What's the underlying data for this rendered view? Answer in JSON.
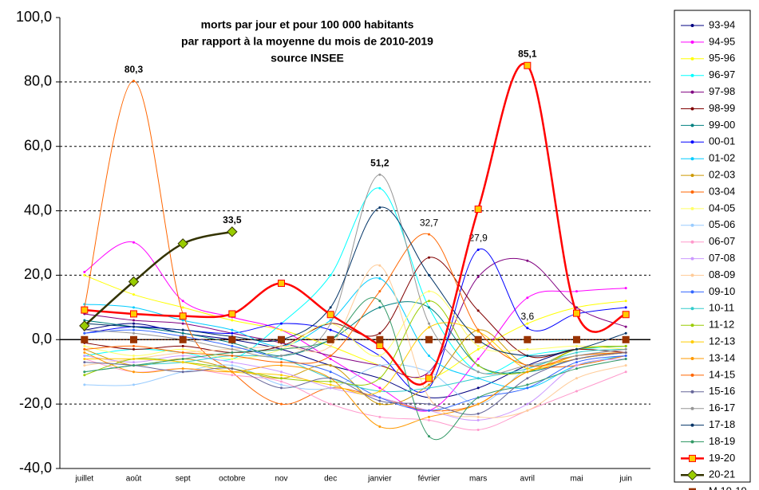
{
  "chart_data": {
    "type": "line",
    "title": [
      "morts par jour et pour 100 000 habitants",
      "par rapport à la moyenne du mois de 2010-2019",
      "source INSEE"
    ],
    "categories": [
      "juillet",
      "août",
      "sept",
      "octobre",
      "nov",
      "dec",
      "janvier",
      "février",
      "mars",
      "avril",
      "mai",
      "juin"
    ],
    "ylim": [
      -40,
      100
    ],
    "yticks": [
      {
        "value": -40,
        "label": "-40,0"
      },
      {
        "value": -20,
        "label": "-20,0"
      },
      {
        "value": 0,
        "label": "0,0"
      },
      {
        "value": 20,
        "label": "20,0"
      },
      {
        "value": 40,
        "label": "40,0"
      },
      {
        "value": 60,
        "label": "60,0"
      },
      {
        "value": 80,
        "label": "80,0"
      },
      {
        "value": 100,
        "label": "100,0"
      }
    ],
    "grid": true,
    "legend": "right",
    "series": [
      {
        "name": "93-94",
        "color": "#000080",
        "values": [
          3,
          5,
          2,
          0,
          -3,
          -8,
          -12,
          -18,
          -15,
          -8,
          -3,
          -2
        ]
      },
      {
        "name": "94-95",
        "color": "#ff00ff",
        "values": [
          21,
          30.2,
          12,
          7,
          3,
          -6,
          -15,
          -22,
          -6,
          13,
          15,
          16
        ]
      },
      {
        "name": "95-96",
        "color": "#ffff00",
        "values": [
          20,
          14,
          10,
          6,
          3,
          -2,
          -8,
          -12,
          -3,
          5,
          10,
          12
        ]
      },
      {
        "name": "96-97",
        "color": "#00ffff",
        "values": [
          -5,
          -3,
          -4,
          -6,
          5,
          20,
          47,
          10,
          -10,
          -5,
          -3,
          -2
        ]
      },
      {
        "name": "97-98",
        "color": "#800080",
        "values": [
          8,
          6,
          5,
          2,
          -1,
          -5,
          -8,
          -10,
          19.5,
          24.5,
          10,
          4
        ]
      },
      {
        "name": "98-99",
        "color": "#800000",
        "values": [
          -1,
          -3,
          -2,
          -4,
          -2,
          5,
          2,
          25.5,
          9,
          -5,
          -3,
          -4
        ]
      },
      {
        "name": "99-00",
        "color": "#008080",
        "values": [
          6,
          4,
          2,
          -1,
          -5,
          0,
          10,
          10,
          -8,
          -10,
          -6,
          -4
        ]
      },
      {
        "name": "00-01",
        "color": "#0000ff",
        "values": [
          2,
          4,
          3,
          2,
          5,
          3,
          -5,
          -15,
          27.9,
          3.6,
          8,
          10
        ],
        "value_labels": [
          null,
          null,
          null,
          null,
          null,
          null,
          null,
          null,
          "27,9",
          "3,6",
          null,
          null
        ]
      },
      {
        "name": "01-02",
        "color": "#00ccff",
        "values": [
          11,
          10,
          6,
          3,
          -2,
          6,
          19,
          -5,
          -12,
          -15,
          -8,
          -5
        ]
      },
      {
        "name": "02-03",
        "color": "#cc9900",
        "values": [
          -3,
          -8,
          -6,
          -9,
          -12,
          -8,
          -20,
          -14,
          3,
          -8,
          -3,
          -2
        ]
      },
      {
        "name": "03-04",
        "color": "#ff6600",
        "values": [
          10,
          80.3,
          8,
          -10,
          -20,
          -15,
          -18,
          -22,
          -20,
          -10,
          -8,
          -5
        ],
        "value_labels": [
          null,
          "80,3",
          null,
          null,
          null,
          null,
          null,
          null,
          null,
          null,
          null,
          null
        ]
      },
      {
        "name": "04-05",
        "color": "#ffff66",
        "values": [
          -2,
          -5,
          -3,
          -6,
          -3,
          5,
          -5,
          15,
          -2,
          -3,
          -2,
          -3
        ]
      },
      {
        "name": "05-06",
        "color": "#99ccff",
        "values": [
          -14,
          -14,
          -10,
          -8,
          -14,
          -15,
          -8,
          -10,
          -20,
          -9,
          -5,
          -3
        ]
      },
      {
        "name": "06-07",
        "color": "#ff99cc",
        "values": [
          -6,
          -10,
          -9,
          -11,
          -13,
          -20,
          -24,
          -25,
          -28,
          -22,
          -16,
          -10
        ]
      },
      {
        "name": "07-08",
        "color": "#cc99ff",
        "values": [
          -5,
          -7,
          -5,
          -7,
          -10,
          -15,
          -18,
          -22,
          -25,
          -20,
          -8,
          -6
        ]
      },
      {
        "name": "08-09",
        "color": "#ffcc99",
        "values": [
          -8,
          -6,
          -4,
          -3,
          -2,
          -2,
          23,
          -18,
          -24,
          -22,
          -12,
          -8
        ]
      },
      {
        "name": "09-10",
        "color": "#3366ff",
        "values": [
          2,
          3,
          1,
          -2,
          -6,
          -10,
          -18,
          -22,
          -18,
          -15,
          -7,
          -5
        ]
      },
      {
        "name": "10-11",
        "color": "#33cccc",
        "values": [
          -10,
          -8,
          -7,
          -5,
          -6,
          -12,
          -16,
          -15,
          -12,
          -9,
          -4,
          -3
        ]
      },
      {
        "name": "11-12",
        "color": "#99cc00",
        "values": [
          -11,
          -6,
          -7,
          -9,
          -12,
          -13,
          -12,
          12,
          -8,
          -10,
          -3,
          -2
        ]
      },
      {
        "name": "12-13",
        "color": "#ffcc00",
        "values": [
          -6,
          -6,
          -7,
          -10,
          -11,
          -14,
          -16,
          3.8,
          2.5,
          -9,
          -5,
          -4
        ]
      },
      {
        "name": "13-14",
        "color": "#ff9900",
        "values": [
          -4,
          -10,
          -9,
          -10,
          -8,
          -12,
          -27,
          -24,
          -20,
          -10,
          -6,
          -4
        ]
      },
      {
        "name": "14-15",
        "color": "#ff6600",
        "values": [
          -3,
          -2,
          -4,
          -5,
          -7,
          -5,
          15,
          32.7,
          3,
          -8,
          -5,
          -4
        ],
        "value_labels": [
          null,
          null,
          null,
          null,
          null,
          null,
          null,
          "32,7",
          null,
          null,
          null,
          null
        ]
      },
      {
        "name": "15-16",
        "color": "#666699",
        "values": [
          -7,
          -8,
          -10,
          -9,
          -15,
          -12,
          -19,
          -20,
          -23,
          -12,
          -6,
          -4
        ]
      },
      {
        "name": "16-17",
        "color": "#969696",
        "values": [
          3,
          2,
          0,
          -3,
          -5,
          5,
          51.2,
          5,
          -10,
          -8,
          -5,
          -3
        ],
        "value_labels": [
          null,
          null,
          null,
          null,
          null,
          null,
          "51,2",
          null,
          null,
          null,
          null,
          null
        ]
      },
      {
        "name": "17-18",
        "color": "#003366",
        "values": [
          5,
          4,
          3,
          1,
          0,
          10,
          41,
          20,
          0,
          -5,
          -3,
          2
        ]
      },
      {
        "name": "18-19",
        "color": "#339966",
        "values": [
          -10,
          -8,
          -6,
          -4,
          -3,
          0,
          12,
          -30,
          -18,
          -14,
          -9,
          -6
        ]
      },
      {
        "name": "19-20",
        "color": "#ff0000",
        "marker": "square",
        "marker_color": "#ffcc00",
        "style": "bold",
        "values": [
          9.2,
          8,
          7.3,
          8,
          17.5,
          7.8,
          -1.8,
          -12,
          40.5,
          85.1,
          8.2,
          7.8
        ],
        "value_labels": [
          null,
          null,
          null,
          null,
          null,
          null,
          null,
          null,
          null,
          "85,1",
          null,
          null
        ]
      },
      {
        "name": "20-21",
        "color": "#333300",
        "marker": "diamond",
        "marker_color": "#99cc00",
        "style": "bold",
        "values": [
          4.3,
          18,
          29.8,
          33.5,
          null,
          null,
          null,
          null,
          null,
          null,
          null,
          null
        ],
        "value_labels": [
          null,
          null,
          null,
          "33,5",
          null,
          null,
          null,
          null,
          null,
          null,
          null,
          null
        ]
      },
      {
        "name": "M 10-19",
        "color": "#993300",
        "marker": "square",
        "marker_color": "#993300",
        "style": "dotted",
        "values": [
          0,
          0,
          0,
          0,
          0,
          0,
          0,
          0,
          0,
          0,
          0,
          0
        ]
      }
    ]
  }
}
